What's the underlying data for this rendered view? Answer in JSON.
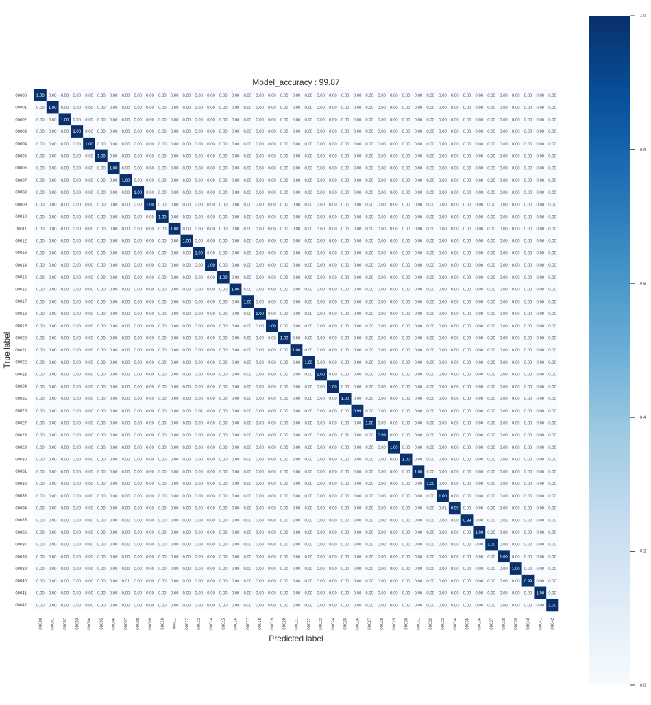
{
  "chart_data": {
    "type": "heatmap",
    "title": "Model_accuracy : 99.87",
    "xlabel": "Predicted label",
    "ylabel": "True label",
    "labels": [
      "00000",
      "00001",
      "00002",
      "00003",
      "00004",
      "00005",
      "00006",
      "00007",
      "00008",
      "00009",
      "00010",
      "00011",
      "00012",
      "00013",
      "00014",
      "00015",
      "00016",
      "00017",
      "00018",
      "00019",
      "00020",
      "00021",
      "00022",
      "00023",
      "00024",
      "00025",
      "00026",
      "00027",
      "00028",
      "00029",
      "00030",
      "00031",
      "00032",
      "00033",
      "00034",
      "00035",
      "00036",
      "00037",
      "00038",
      "00039",
      "00040",
      "00041",
      "00042"
    ],
    "value_format": "0.00",
    "default_value": 0.0,
    "diagonal": [
      1.0,
      1.0,
      1.0,
      1.0,
      1.0,
      1.0,
      1.0,
      1.0,
      1.0,
      1.0,
      1.0,
      1.0,
      1.0,
      1.0,
      1.0,
      1.0,
      1.0,
      1.0,
      1.0,
      1.0,
      1.0,
      1.0,
      1.0,
      1.0,
      1.0,
      1.0,
      0.99,
      1.0,
      0.99,
      1.0,
      1.0,
      1.0,
      1.0,
      1.0,
      0.99,
      0.99,
      1.0,
      1.0,
      1.0,
      1.0,
      0.99,
      1.0,
      1.0
    ],
    "off_diagonal": [
      {
        "true": "00026",
        "pred": "00013",
        "value": 0.01
      },
      {
        "true": "00028",
        "pred": "00025",
        "value": 0.01
      },
      {
        "true": "00034",
        "pred": "00033",
        "value": 0.01
      },
      {
        "true": "00035",
        "pred": "00038",
        "value": 0.01
      },
      {
        "true": "00040",
        "pred": "00007",
        "value": 0.01
      }
    ],
    "colormap": "Blues",
    "colormap_stops": [
      "#f7fbff",
      "#deebf7",
      "#c6dbef",
      "#9ecae1",
      "#6baed6",
      "#4292c6",
      "#2171b5",
      "#08519c",
      "#08306b"
    ],
    "colorbar": {
      "range": [
        0.0,
        1.0
      ],
      "ticks": [
        "0.0",
        "0.2",
        "0.4",
        "0.6",
        "0.8",
        "1.0"
      ]
    },
    "grid": false
  }
}
